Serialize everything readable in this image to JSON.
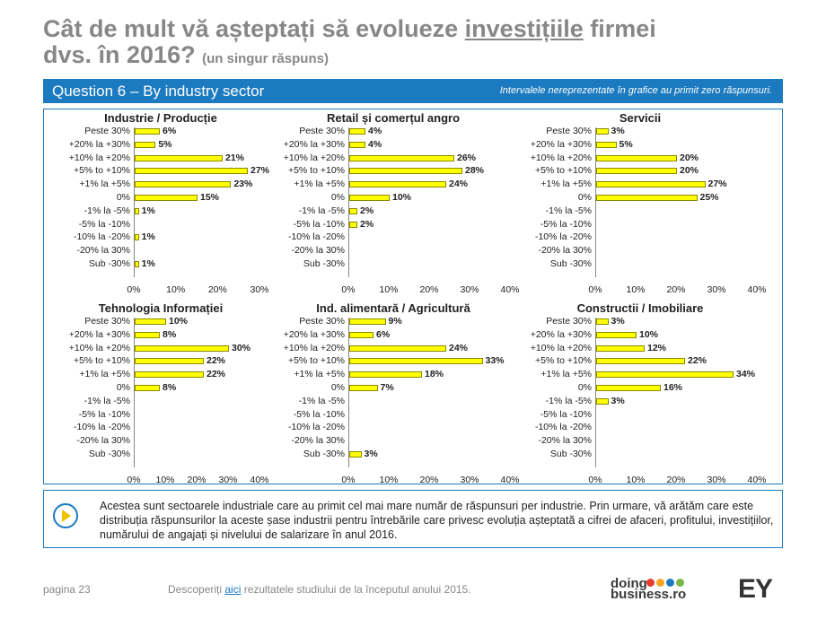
{
  "header": {
    "title_part1": "Cât de mult vă așteptați să evolueze ",
    "title_underlined": "investițiile",
    "title_part2": " firmei",
    "title_line2": "dvs. în 2016?",
    "title_small": "(un singur răspuns)"
  },
  "banner": {
    "question": "Question 6 – By industry sector",
    "note": "Intervalele nereprezentate în grafice au primit zero răspunsuri."
  },
  "categories": [
    "Peste 30%",
    "+20% la +30%",
    "+10% la +20%",
    "+5% to +10%",
    "+1% la +5%",
    "0%",
    "-1% la -5%",
    "-5% la -10%",
    "-10% la -20%",
    "-20% la 30%",
    "Sub -30%"
  ],
  "chart_data": [
    {
      "type": "bar",
      "title": "Industrie / Producție",
      "xlim": [
        0,
        30
      ],
      "ticks": [
        "0%",
        "10%",
        "20%",
        "30%"
      ],
      "values": [
        6,
        5,
        21,
        27,
        23,
        15,
        1,
        null,
        1,
        null,
        1
      ]
    },
    {
      "type": "bar",
      "title": "Retail și comerțul angro",
      "xlim": [
        0,
        40
      ],
      "ticks": [
        "0%",
        "10%",
        "20%",
        "30%",
        "40%"
      ],
      "values": [
        4,
        4,
        26,
        28,
        24,
        10,
        2,
        2,
        null,
        null,
        null
      ]
    },
    {
      "type": "bar",
      "title": "Servicii",
      "xlim": [
        0,
        40
      ],
      "ticks": [
        "0%",
        "10%",
        "20%",
        "30%",
        "40%"
      ],
      "values": [
        3,
        5,
        20,
        20,
        27,
        25,
        null,
        null,
        null,
        null,
        null
      ]
    },
    {
      "type": "bar",
      "title": "Tehnologia Informației",
      "xlim": [
        0,
        40
      ],
      "ticks": [
        "0%",
        "10%",
        "20%",
        "30%",
        "40%"
      ],
      "values": [
        10,
        8,
        30,
        22,
        22,
        8,
        null,
        null,
        null,
        null,
        null
      ]
    },
    {
      "type": "bar",
      "title": "Ind. alimentară / Agricultură",
      "xlim": [
        0,
        40
      ],
      "ticks": [
        "0%",
        "10%",
        "20%",
        "30%",
        "40%"
      ],
      "values": [
        9,
        6,
        24,
        33,
        18,
        7,
        null,
        null,
        null,
        null,
        3
      ]
    },
    {
      "type": "bar",
      "title": "Constructii / Imobiliare",
      "xlim": [
        0,
        40
      ],
      "ticks": [
        "0%",
        "10%",
        "20%",
        "30%",
        "40%"
      ],
      "values": [
        3,
        10,
        12,
        22,
        34,
        16,
        3,
        null,
        null,
        null,
        null
      ]
    }
  ],
  "info": {
    "text": "Acestea sunt sectoarele industriale care au primit cel mai mare număr de răspunsuri per industrie. Prin urmare, vă arătăm care este distribuția răspunsurilor la aceste șase industrii pentru întrebările care privesc evoluția așteptată a cifrei de afaceri, profitului, investițiilor, numărului de angajați și nivelului de salarizare în anul 2016."
  },
  "footer": {
    "page": "pagina 23",
    "text_before": "Descoperiți ",
    "link": "aici",
    "text_after": " rezultatele studiului de la începutul anului 2015.",
    "logo_doing": "doing",
    "logo_business": "business.ro",
    "logo_ey": "EY",
    "dot_colors": [
      "#e63b2e",
      "#f5a623",
      "#1b7ac0",
      "#7ab648"
    ]
  },
  "colors": {
    "accent": "#1b7ac0",
    "bar": "#ffff00",
    "title_grey": "#878787"
  }
}
